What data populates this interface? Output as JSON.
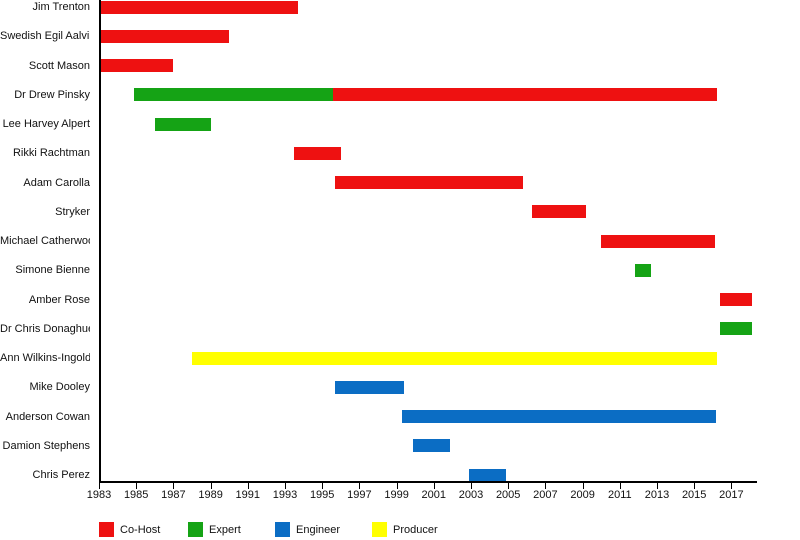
{
  "chart_data": {
    "type": "bar",
    "subtype": "gantt-timeline",
    "title": "",
    "xlabel": "",
    "ylabel": "",
    "x_axis": {
      "min": 1983,
      "max": 2018.2,
      "tick_years": [
        1983,
        1985,
        1987,
        1989,
        1991,
        1993,
        1995,
        1997,
        1999,
        2001,
        2003,
        2005,
        2007,
        2009,
        2011,
        2013,
        2015,
        2017
      ]
    },
    "legend": [
      {
        "label": "Co-Host",
        "color": "#ee1111"
      },
      {
        "label": "Expert",
        "color": "#15a315"
      },
      {
        "label": "Engineer",
        "color": "#0b6dc4"
      },
      {
        "label": "Producer",
        "color": "#ffff00"
      }
    ],
    "legend_position": "bottom",
    "grid": false,
    "rows": [
      {
        "name": "Jim Trenton",
        "segments": [
          {
            "role": "Co-Host",
            "start": 1983.1,
            "end": 1993.7
          }
        ]
      },
      {
        "name": "Swedish Egil Aalvik",
        "segments": [
          {
            "role": "Co-Host",
            "start": 1983.1,
            "end": 1990.0
          }
        ]
      },
      {
        "name": "Scott Mason",
        "segments": [
          {
            "role": "Co-Host",
            "start": 1983.1,
            "end": 1987.0
          }
        ]
      },
      {
        "name": "Dr Drew Pinsky",
        "segments": [
          {
            "role": "Expert",
            "start": 1984.9,
            "end": 1995.6
          },
          {
            "role": "Co-Host",
            "start": 1995.6,
            "end": 2016.2
          }
        ]
      },
      {
        "name": "Lee Harvey Alpert",
        "segments": [
          {
            "role": "Expert",
            "start": 1986.0,
            "end": 1989.0
          }
        ]
      },
      {
        "name": "Rikki Rachtman",
        "segments": [
          {
            "role": "Co-Host",
            "start": 1993.5,
            "end": 1996.0
          }
        ]
      },
      {
        "name": "Adam Carolla",
        "segments": [
          {
            "role": "Co-Host",
            "start": 1995.7,
            "end": 2005.8
          }
        ]
      },
      {
        "name": "Stryker",
        "segments": [
          {
            "role": "Co-Host",
            "start": 2006.3,
            "end": 2009.2
          }
        ]
      },
      {
        "name": "Michael Catherwood",
        "segments": [
          {
            "role": "Co-Host",
            "start": 2010.0,
            "end": 2016.1
          }
        ]
      },
      {
        "name": "Simone Bienne",
        "segments": [
          {
            "role": "Expert",
            "start": 2011.8,
            "end": 2012.7
          }
        ]
      },
      {
        "name": "Amber Rose",
        "segments": [
          {
            "role": "Co-Host",
            "start": 2016.4,
            "end": 2018.1
          }
        ]
      },
      {
        "name": "Dr Chris Donaghue",
        "segments": [
          {
            "role": "Expert",
            "start": 2016.4,
            "end": 2018.1
          }
        ]
      },
      {
        "name": "Ann Wilkins-Ingold",
        "segments": [
          {
            "role": "Producer",
            "start": 1988.0,
            "end": 2016.2
          }
        ]
      },
      {
        "name": "Mike Dooley",
        "segments": [
          {
            "role": "Engineer",
            "start": 1995.7,
            "end": 1999.4
          }
        ]
      },
      {
        "name": "Anderson Cowan",
        "segments": [
          {
            "role": "Engineer",
            "start": 1999.3,
            "end": 2016.2
          }
        ]
      },
      {
        "name": "Damion Stephens",
        "segments": [
          {
            "role": "Engineer",
            "start": 1999.9,
            "end": 2001.9
          }
        ]
      },
      {
        "name": "Chris Perez",
        "segments": [
          {
            "role": "Engineer",
            "start": 2002.9,
            "end": 2004.9
          }
        ]
      }
    ]
  },
  "colors": {
    "axis": "#000000",
    "text": "#111111",
    "background": "#ffffff"
  }
}
